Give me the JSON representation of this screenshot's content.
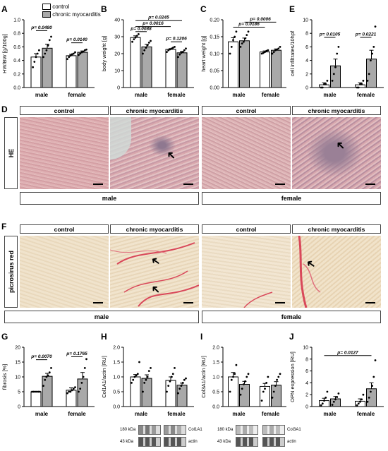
{
  "panel_labels": {
    "A": "A",
    "B": "B",
    "C": "C",
    "D": "D",
    "E": "E",
    "F": "F",
    "G": "G",
    "H": "H",
    "I": "I",
    "J": "J"
  },
  "legend": {
    "control": "control",
    "disease": "chronic myocarditis"
  },
  "colors": {
    "control": "#ffffff",
    "disease": "#a9a9a9",
    "he_stain": "#d7a3a7",
    "he_stain_dark": "#b3889a",
    "picro_bg": "#efe2cb",
    "picro_fiber": "#d9485a"
  },
  "histology": {
    "headers": [
      "control",
      "chronic myocarditis",
      "control",
      "chronic myocarditis"
    ],
    "he_side_label": "HE",
    "picro_side_label": "picrosirus red",
    "male_label": "male",
    "female_label": "female"
  },
  "blots": {
    "H": {
      "kda_top": "180 kDa",
      "kda_bottom": "43 kDa",
      "protein": "Col1A1",
      "loading": "actin"
    },
    "I": {
      "kda_top": "180 kDa",
      "kda_bottom": "43 kDa",
      "protein": "Col3A1",
      "loading": "actin"
    }
  },
  "chart_data": [
    {
      "id": "A",
      "type": "bar",
      "ylabel": "HW/BW [g/100g]",
      "ylim": [
        0,
        1.0
      ],
      "yticks": [
        0,
        0.2,
        0.4,
        0.6,
        0.8,
        1.0
      ],
      "categories": [
        "male",
        "female"
      ],
      "series": [
        {
          "name": "control",
          "values": [
            0.45,
            0.47
          ],
          "err": [
            0.05,
            0.02
          ],
          "points": [
            [
              0.3,
              0.38,
              0.45,
              0.5,
              0.55
            ],
            [
              0.42,
              0.45,
              0.47,
              0.49,
              0.5,
              0.52
            ]
          ]
        },
        {
          "name": "chronic myocarditis",
          "values": [
            0.58,
            0.52
          ],
          "err": [
            0.06,
            0.02
          ],
          "points": [
            [
              0.45,
              0.5,
              0.55,
              0.62,
              0.7,
              0.75
            ],
            [
              0.48,
              0.5,
              0.52,
              0.53,
              0.55,
              0.56
            ]
          ]
        }
      ],
      "annotations": [
        {
          "text": "p= 0.0480",
          "from": 0,
          "to": 1,
          "y": 0.84
        },
        {
          "text": "p= 0.0140",
          "from": 2,
          "to": 3,
          "y": 0.66
        }
      ]
    },
    {
      "id": "B",
      "type": "bar",
      "ylabel": "body weight [g]",
      "ylim": [
        0,
        40
      ],
      "yticks": [
        0,
        10,
        20,
        30,
        40
      ],
      "categories": [
        "male",
        "female"
      ],
      "series": [
        {
          "name": "control",
          "values": [
            29.5,
            22.5
          ],
          "err": [
            1.0,
            0.5
          ],
          "points": [
            [
              27,
              28.5,
              29.5,
              30.5,
              31.5
            ],
            [
              21,
              22,
              22.5,
              23,
              23.5,
              24
            ]
          ]
        },
        {
          "name": "chronic myocarditis",
          "values": [
            24.0,
            20.5
          ],
          "err": [
            1.5,
            0.8
          ],
          "points": [
            [
              20,
              22,
              23.5,
              25,
              26.5,
              27.5
            ],
            [
              18,
              19.5,
              20.5,
              21,
              22,
              23
            ]
          ]
        }
      ],
      "annotations": [
        {
          "text": "p= 0.0088",
          "from": 0,
          "to": 1,
          "y": 33
        },
        {
          "text": "p= 0.0016",
          "from": 0,
          "to": 2,
          "y": 36
        },
        {
          "text": "p= 0.0245",
          "from": 0,
          "to": 3,
          "y": 39.5
        },
        {
          "text": "p= 0.1206",
          "from": 2,
          "to": 3,
          "y": 27
        }
      ]
    },
    {
      "id": "C",
      "type": "bar",
      "ylabel": "heart weight [g]",
      "ylim": [
        0,
        0.2
      ],
      "yticks": [
        0,
        0.05,
        0.1,
        0.15,
        0.2
      ],
      "categories": [
        "male",
        "female"
      ],
      "series": [
        {
          "name": "control",
          "values": [
            0.135,
            0.105
          ],
          "err": [
            0.012,
            0.003
          ],
          "points": [
            [
              0.1,
              0.12,
              0.14,
              0.15,
              0.165
            ],
            [
              0.1,
              0.102,
              0.105,
              0.108,
              0.11
            ]
          ]
        },
        {
          "name": "chronic myocarditis",
          "values": [
            0.138,
            0.11
          ],
          "err": [
            0.008,
            0.004
          ],
          "points": [
            [
              0.12,
              0.13,
              0.135,
              0.145,
              0.155,
              0.165
            ],
            [
              0.1,
              0.105,
              0.11,
              0.112,
              0.115,
              0.12
            ]
          ]
        }
      ],
      "annotations": [
        {
          "text": "p= 0.0186",
          "from": 0,
          "to": 2,
          "y": 0.178
        },
        {
          "text": "p= 0.0006",
          "from": 1,
          "to": 3,
          "y": 0.193
        }
      ]
    },
    {
      "id": "E",
      "type": "bar",
      "ylabel": "cell infiltrates/10hpf",
      "ylim": [
        0,
        10
      ],
      "yticks": [
        0,
        2,
        4,
        6,
        8,
        10
      ],
      "categories": [
        "male",
        "female"
      ],
      "series": [
        {
          "name": "control",
          "values": [
            0.4,
            0.4
          ],
          "err": [
            0.3,
            0.3
          ],
          "points": [
            [
              0,
              0,
              0.5,
              0.5,
              1
            ],
            [
              0,
              0,
              0.5,
              0.5,
              1
            ]
          ]
        },
        {
          "name": "chronic myocarditis",
          "values": [
            3.2,
            4.2
          ],
          "err": [
            1.0,
            1.3
          ],
          "points": [
            [
              1,
              2,
              3,
              5,
              6
            ],
            [
              1,
              2,
              4,
              5,
              6,
              9
            ]
          ]
        }
      ],
      "annotations": [
        {
          "text": "p= 0.0105",
          "from": 0,
          "to": 1,
          "y": 7.4
        },
        {
          "text": "p= 0.0221",
          "from": 2,
          "to": 3,
          "y": 7.4
        }
      ]
    },
    {
      "id": "G",
      "type": "bar",
      "ylabel": "fibrosis [%]",
      "ylim": [
        0,
        20
      ],
      "yticks": [
        0,
        5,
        10,
        15,
        20
      ],
      "categories": [
        "male",
        "female"
      ],
      "series": [
        {
          "name": "control",
          "values": [
            5.0,
            5.5
          ],
          "err": [
            0.1,
            0.8
          ],
          "points": [
            [
              5,
              5,
              5,
              5,
              5,
              5
            ],
            [
              4.5,
              5,
              5,
              5.5,
              6,
              6.5
            ]
          ]
        },
        {
          "name": "chronic myocarditis",
          "values": [
            10.2,
            9.3
          ],
          "err": [
            1.0,
            2.2
          ],
          "points": [
            [
              7,
              9,
              10,
              10.5,
              11.5,
              13
            ],
            [
              5,
              6,
              8,
              10,
              13,
              16
            ]
          ]
        }
      ],
      "annotations": [
        {
          "text": "p= 0.0070",
          "from": 0,
          "to": 1,
          "y": 15.8
        },
        {
          "text": "p= 0.1765",
          "from": 2,
          "to": 3,
          "y": 16.8
        }
      ]
    },
    {
      "id": "H",
      "type": "bar",
      "ylabel": "Col1A1/actin [RU]",
      "ylim": [
        0,
        2.0
      ],
      "yticks": [
        0,
        0.5,
        1.0,
        1.5,
        2.0
      ],
      "categories": [
        "male",
        "female"
      ],
      "series": [
        {
          "name": "control",
          "values": [
            1.0,
            0.88
          ],
          "err": [
            0.08,
            0.12
          ],
          "points": [
            [
              0.8,
              0.9,
              1.0,
              1.05,
              1.1,
              1.5
            ],
            [
              0.5,
              0.7,
              0.85,
              1.0,
              1.1,
              1.3
            ]
          ]
        },
        {
          "name": "chronic myocarditis",
          "values": [
            0.95,
            0.72
          ],
          "err": [
            0.12,
            0.07
          ],
          "points": [
            [
              0.5,
              0.8,
              0.9,
              1.0,
              1.2,
              1.3
            ],
            [
              0.45,
              0.6,
              0.7,
              0.8,
              0.9,
              0.95
            ]
          ]
        }
      ],
      "annotations": []
    },
    {
      "id": "I",
      "type": "bar",
      "ylabel": "Col3A1/actin [RU]",
      "ylim": [
        0,
        2.0
      ],
      "yticks": [
        0,
        0.5,
        1.0,
        1.5,
        2.0
      ],
      "categories": [
        "male",
        "female"
      ],
      "series": [
        {
          "name": "control",
          "values": [
            1.0,
            0.68
          ],
          "err": [
            0.15,
            0.1
          ],
          "points": [
            [
              0.5,
              0.9,
              1.0,
              1.1,
              1.4
            ],
            [
              0.2,
              0.5,
              0.6,
              0.8,
              1.0
            ]
          ]
        },
        {
          "name": "chronic myocarditis",
          "values": [
            0.75,
            0.72
          ],
          "err": [
            0.1,
            0.12
          ],
          "points": [
            [
              0.4,
              0.6,
              0.75,
              0.85,
              1.0,
              1.1
            ],
            [
              0.3,
              0.5,
              0.7,
              0.9,
              1.0,
              1.1
            ]
          ]
        }
      ],
      "annotations": []
    },
    {
      "id": "J",
      "type": "bar",
      "ylabel": "OPN expression [RU]",
      "ylim": [
        0,
        10
      ],
      "yticks": [
        0,
        2,
        4,
        6,
        8,
        10
      ],
      "categories": [
        "male",
        "female"
      ],
      "series": [
        {
          "name": "control",
          "values": [
            1.0,
            0.9
          ],
          "err": [
            0.4,
            0.4
          ],
          "points": [
            [
              0.2,
              0.5,
              1.0,
              1.5,
              2.5
            ],
            [
              0.2,
              0.5,
              0.8,
              1.2,
              2.0
            ]
          ]
        },
        {
          "name": "chronic myocarditis",
          "values": [
            1.3,
            3.0
          ],
          "err": [
            0.4,
            1.0
          ],
          "points": [
            [
              0.3,
              0.8,
              1.2,
              1.6,
              2.2
            ],
            [
              0.8,
              1.5,
              2.5,
              3.5,
              5.0,
              7.8
            ]
          ]
        }
      ],
      "annotations": [
        {
          "text": "p= 0.0127",
          "from": 0,
          "to": 3,
          "y": 8.6
        }
      ]
    }
  ]
}
